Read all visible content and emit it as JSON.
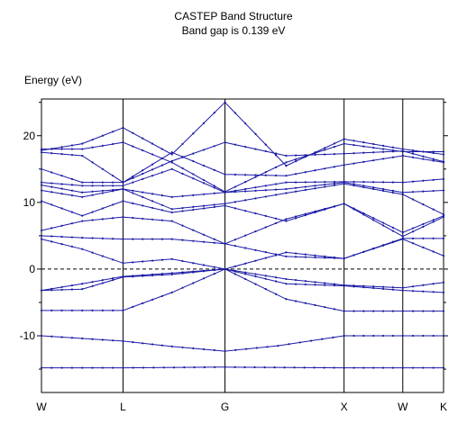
{
  "chart_data": {
    "type": "line",
    "title": "CASTEP Band Structure",
    "subtitle": "Band gap is 0.139 eV",
    "ylabel": "Energy (eV)",
    "xlabel": "",
    "ylim": [
      -18.5,
      25.5
    ],
    "y_ticks": [
      20,
      10,
      0,
      -10
    ],
    "y_tick_labels": [
      "20",
      "10",
      "0",
      "-10"
    ],
    "k_points": [
      "W",
      "L",
      "G",
      "X",
      "W",
      "K"
    ],
    "k_positions": [
      0,
      1.0,
      2.25,
      3.71,
      4.43,
      4.93
    ],
    "fermi_level": 0,
    "line_color": "#1a1aa6",
    "series": [
      {
        "values": [
          [
            0,
            -14.8
          ],
          [
            1,
            -14.8
          ],
          [
            2.25,
            -14.7
          ],
          [
            3.71,
            -14.8
          ],
          [
            4.43,
            -14.8
          ],
          [
            4.93,
            -14.8
          ]
        ]
      },
      {
        "values": [
          [
            0,
            -10
          ],
          [
            1,
            -10.8
          ],
          [
            1.6,
            -11.6
          ],
          [
            2.25,
            -12.3
          ],
          [
            2.9,
            -11.5
          ],
          [
            3.71,
            -10
          ],
          [
            4.43,
            -10
          ],
          [
            4.93,
            -10
          ]
        ]
      },
      {
        "values": [
          [
            0,
            -6.2
          ],
          [
            1,
            -6.2
          ],
          [
            1.6,
            -3.5
          ],
          [
            2.25,
            0
          ],
          [
            3.0,
            -4.5
          ],
          [
            3.71,
            -6.3
          ],
          [
            4.43,
            -6.3
          ],
          [
            4.93,
            -6.3
          ]
        ]
      },
      {
        "values": [
          [
            0,
            -3.2
          ],
          [
            0.5,
            -3
          ],
          [
            1,
            -1.2
          ],
          [
            1.6,
            -0.8
          ],
          [
            2.25,
            0
          ],
          [
            3.0,
            -2.2
          ],
          [
            3.71,
            -2.5
          ],
          [
            4.43,
            -3.2
          ],
          [
            4.93,
            -3.5
          ]
        ]
      },
      {
        "values": [
          [
            0,
            -3.2
          ],
          [
            0.5,
            -2.2
          ],
          [
            1,
            -1.1
          ],
          [
            1.6,
            -0.6
          ],
          [
            2.25,
            0
          ],
          [
            3.0,
            -1.5
          ],
          [
            3.71,
            -2.4
          ],
          [
            4.43,
            -2.8
          ],
          [
            4.93,
            -2.0
          ]
        ]
      },
      {
        "values": [
          [
            0,
            4.5
          ],
          [
            0.5,
            3
          ],
          [
            1,
            0.9
          ],
          [
            1.6,
            1.5
          ],
          [
            2.25,
            0
          ],
          [
            3.0,
            2.5
          ],
          [
            3.71,
            1.6
          ],
          [
            4.43,
            4.5
          ],
          [
            4.93,
            2.0
          ]
        ]
      },
      {
        "values": [
          [
            0,
            5
          ],
          [
            0.5,
            4.7
          ],
          [
            1,
            4.5
          ],
          [
            1.6,
            4.5
          ],
          [
            2.25,
            3.8
          ],
          [
            3.0,
            1.9
          ],
          [
            3.71,
            1.6
          ],
          [
            4.43,
            4.6
          ],
          [
            4.93,
            4.6
          ]
        ]
      },
      {
        "values": [
          [
            0,
            5.8
          ],
          [
            0.5,
            7.2
          ],
          [
            1,
            7.8
          ],
          [
            1.6,
            7.2
          ],
          [
            2.25,
            3.8
          ],
          [
            3.0,
            7.5
          ],
          [
            3.71,
            9.8
          ],
          [
            4.43,
            4.9
          ],
          [
            4.93,
            7.8
          ]
        ]
      },
      {
        "values": [
          [
            0,
            10.2
          ],
          [
            0.5,
            8
          ],
          [
            1,
            10.2
          ],
          [
            1.6,
            8.5
          ],
          [
            2.25,
            9.5
          ],
          [
            3.0,
            7.2
          ],
          [
            3.71,
            9.8
          ],
          [
            4.43,
            5.5
          ],
          [
            4.93,
            8
          ]
        ]
      },
      {
        "values": [
          [
            0,
            11.8
          ],
          [
            0.5,
            10.8
          ],
          [
            1,
            12
          ],
          [
            1.6,
            9
          ],
          [
            2.25,
            9.8
          ],
          [
            3.0,
            11.4
          ],
          [
            3.71,
            12.8
          ],
          [
            4.43,
            11.2
          ],
          [
            4.93,
            8.2
          ]
        ]
      },
      {
        "values": [
          [
            0,
            12.6
          ],
          [
            0.5,
            11.5
          ],
          [
            1,
            12
          ],
          [
            1.6,
            10.8
          ],
          [
            2.25,
            11.5
          ],
          [
            3.0,
            12
          ],
          [
            3.71,
            13
          ],
          [
            4.43,
            11.5
          ],
          [
            4.93,
            11.8
          ]
        ]
      },
      {
        "values": [
          [
            0,
            13
          ],
          [
            0.5,
            12.5
          ],
          [
            1,
            12.5
          ],
          [
            1.6,
            15
          ],
          [
            2.25,
            11.5
          ],
          [
            3.0,
            13
          ],
          [
            3.71,
            13.1
          ],
          [
            4.43,
            13
          ],
          [
            4.93,
            13.5
          ]
        ]
      },
      {
        "values": [
          [
            0,
            15
          ],
          [
            0.5,
            13
          ],
          [
            1,
            13
          ],
          [
            1.6,
            17.5
          ],
          [
            2.25,
            14.2
          ],
          [
            3.0,
            14
          ],
          [
            3.71,
            15.6
          ],
          [
            4.43,
            17
          ],
          [
            4.93,
            16
          ]
        ]
      },
      {
        "values": [
          [
            0,
            17.5
          ],
          [
            0.5,
            17
          ],
          [
            1,
            13
          ],
          [
            1.6,
            16.2
          ],
          [
            2.25,
            19
          ],
          [
            3.0,
            17
          ],
          [
            3.71,
            17.3
          ],
          [
            4.43,
            17.7
          ],
          [
            4.93,
            16.1
          ]
        ]
      },
      {
        "values": [
          [
            0,
            17.8
          ],
          [
            0.5,
            18.8
          ],
          [
            1,
            21.2
          ],
          [
            1.6,
            17.2
          ],
          [
            2.25,
            25
          ],
          [
            3.0,
            15.5
          ],
          [
            3.71,
            19.5
          ],
          [
            4.43,
            18
          ],
          [
            4.93,
            17.2
          ]
        ]
      },
      {
        "values": [
          [
            0,
            18
          ],
          [
            0.5,
            18
          ],
          [
            1,
            19
          ],
          [
            1.6,
            16
          ],
          [
            2.25,
            11.6
          ],
          [
            3.0,
            16
          ],
          [
            3.71,
            18.8
          ],
          [
            4.43,
            17.6
          ],
          [
            4.93,
            17.6
          ]
        ]
      }
    ]
  }
}
